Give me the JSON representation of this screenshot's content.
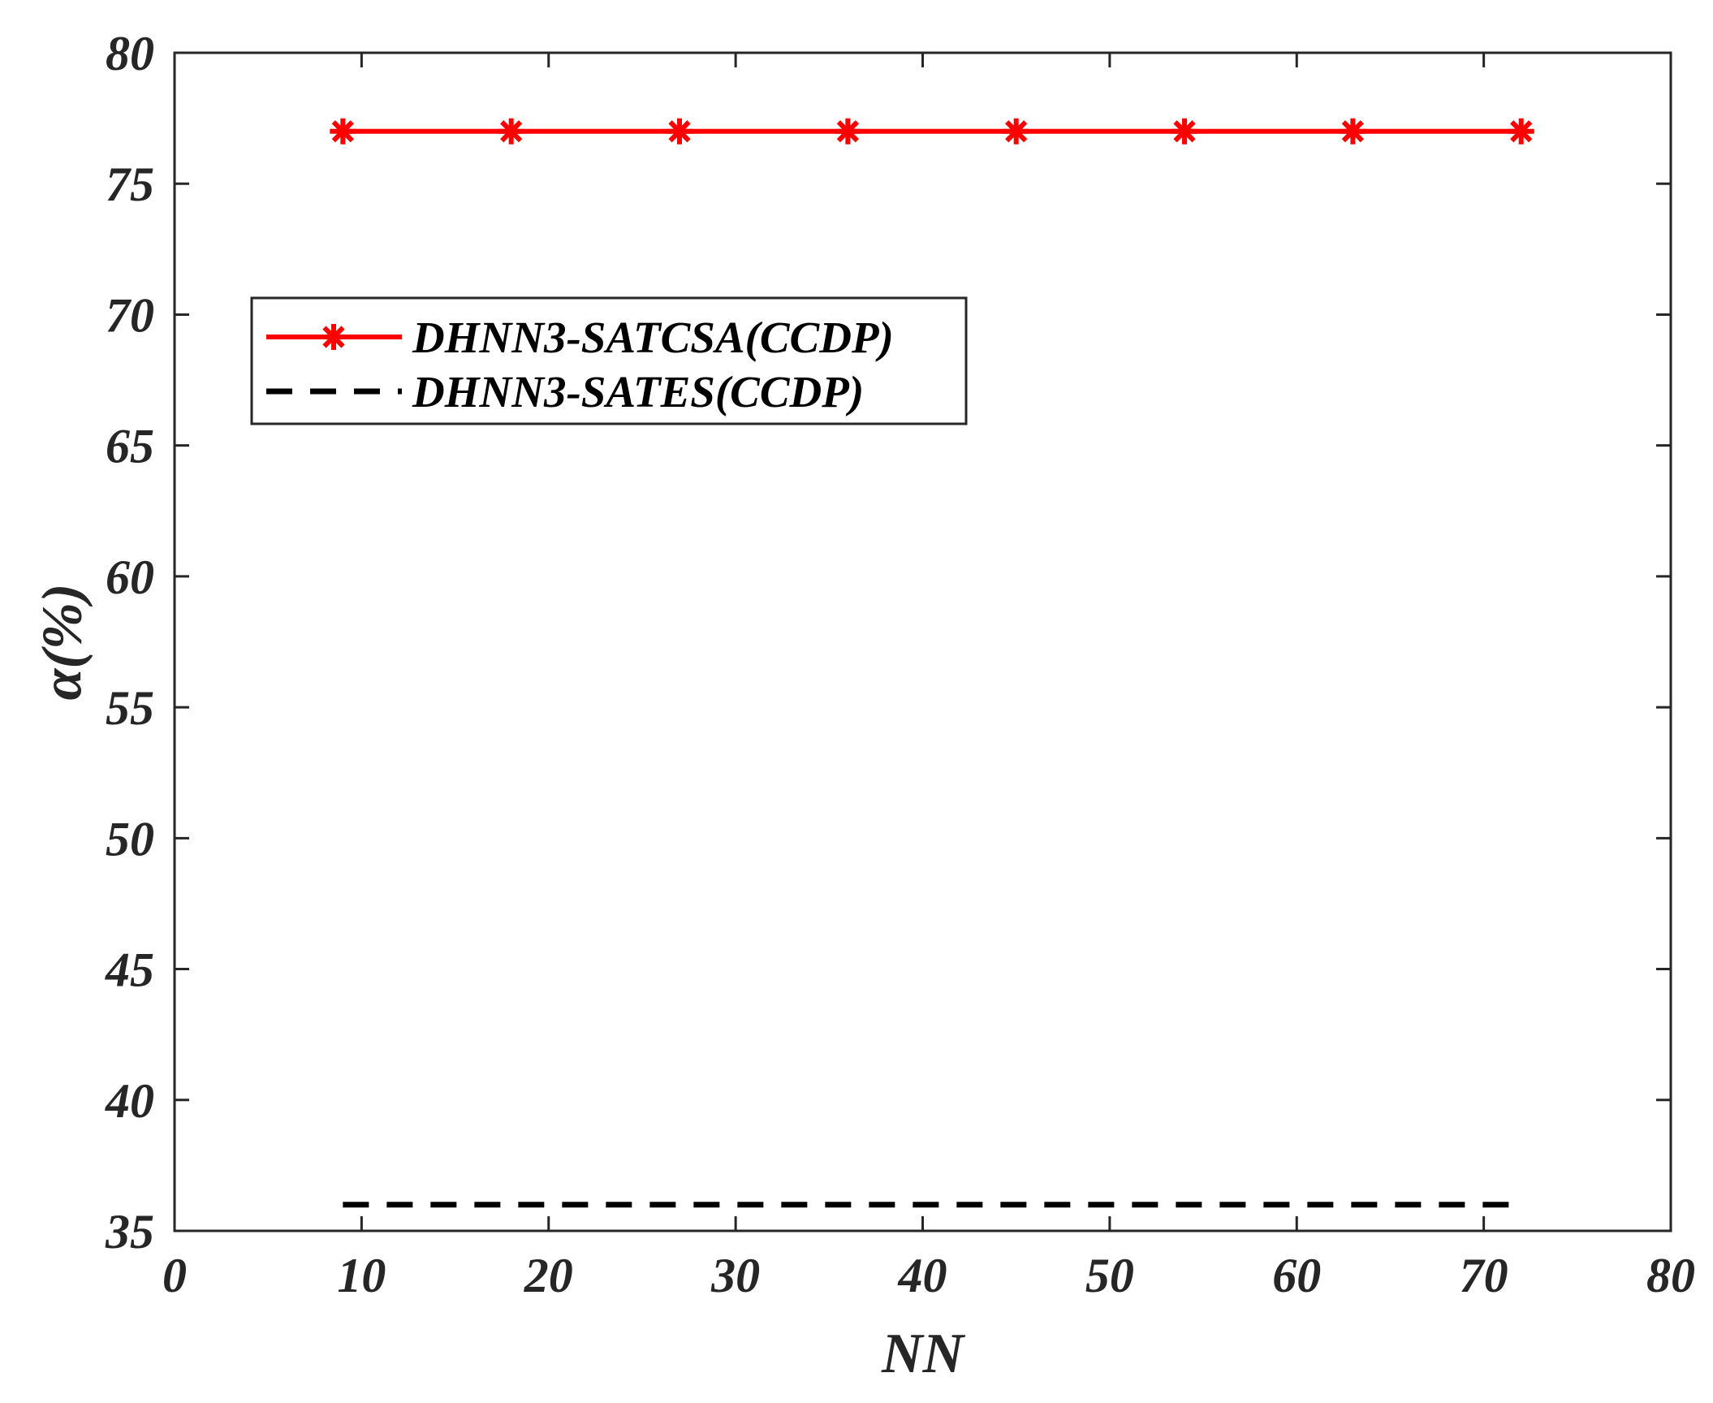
{
  "chart_data": {
    "type": "line",
    "title": "",
    "xlabel": "NN",
    "ylabel": "α(%)",
    "xlim": [
      0,
      80
    ],
    "ylim": [
      35,
      80
    ],
    "xticks": [
      0,
      10,
      20,
      30,
      40,
      50,
      60,
      70,
      80
    ],
    "yticks": [
      35,
      40,
      45,
      50,
      55,
      60,
      65,
      70,
      75,
      80
    ],
    "grid": false,
    "legend_position": "upper-left",
    "series": [
      {
        "name": "DHNN3-SATCSA(CCDP)",
        "color": "#ff0000",
        "line_style": "solid",
        "marker": "asterisk",
        "x": [
          9,
          18,
          27,
          36,
          45,
          54,
          63,
          72
        ],
        "y": [
          77,
          77,
          77,
          77,
          77,
          77,
          77,
          77
        ]
      },
      {
        "name": "DHNN3-SATES(CCDP)",
        "color": "#000000",
        "line_style": "dashed",
        "marker": "none",
        "x": [
          9,
          18,
          27,
          36,
          45,
          54,
          63,
          72
        ],
        "y": [
          36,
          36,
          36,
          36,
          36,
          36,
          36,
          36
        ]
      }
    ]
  }
}
